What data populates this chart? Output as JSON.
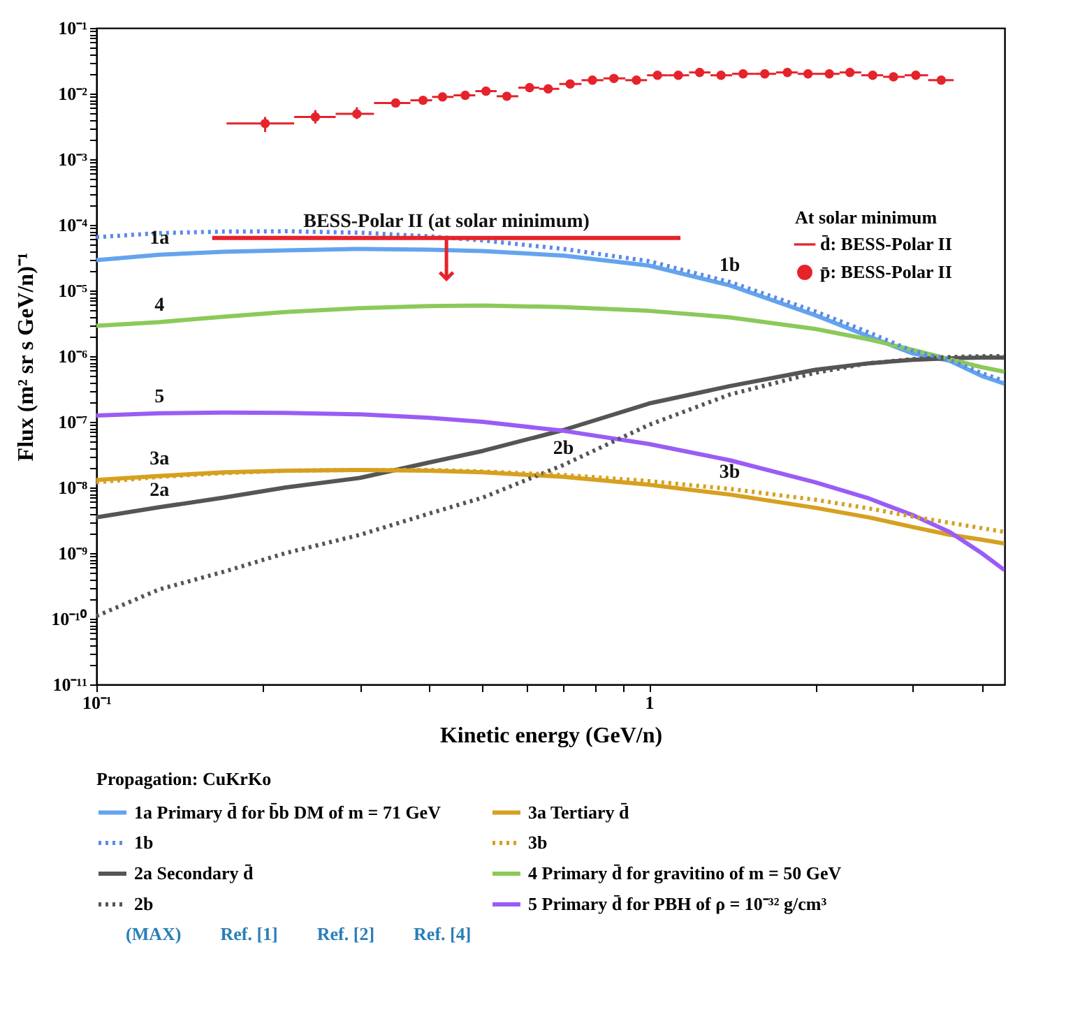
{
  "chart_data": {
    "type": "line",
    "xlabel": "Kinetic energy (GeV/n)",
    "ylabel": "Flux (m² sr s GeV/n)⁻¹",
    "legend_title": "Propagation: CuKrKo",
    "legend": "bottom",
    "log": "xy",
    "x": [
      0.1,
      0.13,
      0.17,
      0.22,
      0.3,
      0.4,
      0.5,
      0.7,
      1.0,
      1.4,
      2.0,
      2.5,
      3.0,
      3.5,
      4.0,
      4.4
    ],
    "series": [
      {
        "name": "1a Primary d̄ for b̄b DM of m = 71 GeV",
        "color": "#64a4ee",
        "line_style": "solid",
        "values": [
          2.9e-05,
          3.5e-05,
          3.9e-05,
          4.1e-05,
          4.3e-05,
          4.2e-05,
          4e-05,
          3.4e-05,
          2.4e-05,
          1.2e-05,
          4.2e-06,
          2e-06,
          1.1e-06,
          8.5e-07,
          5e-07,
          3.8e-07
        ]
      },
      {
        "name": "1b",
        "color": "#5b8be8",
        "line_style": "dotted",
        "values": [
          6.5e-05,
          7.5e-05,
          7.9e-05,
          8e-05,
          7.6e-05,
          6.7e-05,
          5.8e-05,
          4.3e-05,
          2.8e-05,
          1.35e-05,
          4.8e-06,
          2.3e-06,
          1.2e-06,
          8.8e-07,
          5.5e-07,
          4.2e-07
        ]
      },
      {
        "name": "2a Secondary d̄",
        "color": "#555555",
        "line_style": "solid",
        "values": [
          3.5e-09,
          5e-09,
          7e-09,
          1e-08,
          1.4e-08,
          2.4e-08,
          3.6e-08,
          7.5e-08,
          1.9e-07,
          3.5e-07,
          6.2e-07,
          7.8e-07,
          8.8e-07,
          9.3e-07,
          9.5e-07,
          9.5e-07
        ]
      },
      {
        "name": "2b",
        "color": "#555555",
        "line_style": "dotted",
        "values": [
          1.1e-10,
          2.8e-10,
          5.2e-10,
          1e-09,
          1.9e-09,
          4e-09,
          7e-09,
          2.2e-08,
          9e-08,
          2.6e-07,
          5.6e-07,
          7.8e-07,
          9e-07,
          9.7e-07,
          1e-06,
          1e-06
        ]
      },
      {
        "name": "3a Tertiary d̄",
        "color": "#d6a020",
        "line_style": "solid",
        "values": [
          1.3e-08,
          1.5e-08,
          1.7e-08,
          1.8e-08,
          1.85e-08,
          1.8e-08,
          1.7e-08,
          1.45e-08,
          1.1e-08,
          7.8e-09,
          4.9e-09,
          3.5e-09,
          2.5e-09,
          1.9e-09,
          1.6e-09,
          1.4e-09
        ]
      },
      {
        "name": "3b",
        "color": "#d6a020",
        "line_style": "dotted",
        "values": [
          1.2e-08,
          1.45e-08,
          1.65e-08,
          1.8e-08,
          1.85e-08,
          1.85e-08,
          1.75e-08,
          1.55e-08,
          1.25e-08,
          9.5e-09,
          6.5e-09,
          4.8e-09,
          3.6e-09,
          2.9e-09,
          2.4e-09,
          2.1e-09
        ]
      },
      {
        "name": "4 Primary d̄ for gravitino of m = 50 GeV",
        "color": "#8cc95a",
        "line_style": "solid",
        "values": [
          2.9e-06,
          3.3e-06,
          4e-06,
          4.7e-06,
          5.4e-06,
          5.8e-06,
          5.9e-06,
          5.6e-06,
          4.9e-06,
          3.9e-06,
          2.6e-06,
          1.8e-06,
          1.25e-06,
          9e-07,
          6.8e-07,
          5.8e-07
        ]
      },
      {
        "name": "5 Primary d̄ for PBH of ρ = 10⁻³² g/cm³",
        "color": "#9a5cf5",
        "line_style": "solid",
        "values": [
          1.25e-07,
          1.35e-07,
          1.38e-07,
          1.37e-07,
          1.3e-07,
          1.15e-07,
          1e-07,
          7.3e-08,
          4.6e-08,
          2.6e-08,
          1.2e-08,
          6.8e-09,
          3.8e-09,
          2.1e-09,
          1e-09,
          5.5e-10
        ]
      },
      {
        "name": "d̄: BESS-Polar II",
        "type": "line",
        "color": "#e5232b",
        "x": [
          0.162,
          0.43,
          1.14
        ],
        "values": [
          6.3e-05,
          6.3e-05,
          6.3e-05
        ],
        "errors": [
          null,
          [
            1.5e-05,
            6.3e-05
          ],
          null
        ]
      },
      {
        "name": "p̄: BESS-Polar II",
        "type": "scatter",
        "marker": "circle",
        "color": "#e5232b",
        "x": [
          0.202,
          0.249,
          0.296,
          0.348,
          0.39,
          0.423,
          0.465,
          0.507,
          0.553,
          0.608,
          0.657,
          0.72,
          0.79,
          0.864,
          0.949,
          1.036,
          1.13,
          1.235,
          1.35,
          1.48,
          1.62,
          1.78,
          1.94,
          2.12,
          2.31,
          2.54,
          2.77,
          3.04,
          3.38
        ],
        "values": [
          0.0035,
          0.0044,
          0.0049,
          0.0072,
          0.0079,
          0.0089,
          0.0094,
          0.0109,
          0.0091,
          0.0123,
          0.0118,
          0.014,
          0.016,
          0.017,
          0.016,
          0.019,
          0.019,
          0.021,
          0.019,
          0.02,
          0.02,
          0.021,
          0.02,
          0.02,
          0.021,
          0.019,
          0.018,
          0.019,
          0.016
        ],
        "errors": [
          [
            0.0026,
            0.0044
          ],
          [
            0.0035,
            0.0056
          ],
          [
            0.0041,
            0.0062
          ],
          [
            0.0066,
            0.0083
          ],
          [
            0.007,
            0.009
          ],
          [
            0.008,
            0.01
          ],
          [
            0.0086,
            0.0104
          ],
          [
            0.01,
            0.012
          ],
          [
            0.0083,
            0.01
          ],
          [
            0.0115,
            0.0132
          ],
          [
            0.011,
            0.0127
          ],
          null,
          null,
          null,
          null,
          null,
          null,
          null,
          null,
          null,
          null,
          null,
          null,
          null,
          null,
          null,
          null,
          null,
          null
        ],
        "xerrors": [
          [
            0.172,
            0.228
          ],
          [
            0.228,
            0.271
          ],
          [
            0.271,
            0.318
          ],
          [
            0.318,
            0.37
          ],
          [
            0.37,
            0.405
          ],
          [
            0.405,
            0.443
          ],
          [
            0.443,
            0.485
          ],
          [
            0.485,
            0.53
          ],
          [
            0.53,
            0.58
          ],
          [
            0.58,
            0.633
          ],
          [
            0.633,
            0.688
          ],
          [
            0.688,
            0.755
          ],
          [
            0.755,
            0.827
          ],
          [
            0.827,
            0.906
          ],
          [
            0.906,
            0.992
          ],
          [
            0.992,
            1.083
          ],
          [
            1.083,
            1.182
          ],
          [
            1.182,
            1.292
          ],
          [
            1.292,
            1.414
          ],
          [
            1.414,
            1.549
          ],
          [
            1.549,
            1.698
          ],
          [
            1.698,
            1.858
          ],
          [
            1.858,
            2.028
          ],
          [
            2.028,
            2.213
          ],
          [
            2.213,
            2.422
          ],
          [
            2.422,
            2.653
          ],
          [
            2.653,
            2.902
          ],
          [
            2.902,
            3.2
          ],
          [
            3.2,
            3.56
          ]
        ]
      }
    ],
    "annotations": [
      "At solar minimum",
      {
        "text": "BESS-Polar II (at solar minimum)",
        "x": 0.43,
        "y": 6.3e-05
      },
      {
        "text": "1a",
        "x": 0.13,
        "y": 3.5e-05
      },
      {
        "text": "4",
        "x": 0.13,
        "y": 3.3e-06
      },
      {
        "text": "5",
        "x": 0.13,
        "y": 1.35e-07
      },
      {
        "text": "3a",
        "x": 0.13,
        "y": 1.5e-08
      },
      {
        "text": "2a",
        "x": 0.13,
        "y": 5e-09
      },
      {
        "text": "1b",
        "x": 1.4,
        "y": 1.35e-05
      },
      {
        "text": "2b",
        "x": 0.7,
        "y": 2.2e-08
      },
      {
        "text": "3b",
        "x": 1.4,
        "y": 9.5e-09
      },
      "(MAX)",
      "Ref. [1]",
      "Ref. [2]",
      "Ref. [4]"
    ],
    "xlim": [
      0.1,
      4.4
    ],
    "ylim": [
      1e-11,
      0.1
    ],
    "xticks": [
      {
        "value": 0.1,
        "label": "10⁻¹"
      },
      {
        "value": 0.2,
        "label": null
      },
      {
        "value": 0.3,
        "label": null
      },
      {
        "value": 0.4,
        "label": null
      },
      {
        "value": 0.5,
        "label": null
      },
      {
        "value": 0.6,
        "label": null
      },
      {
        "value": 0.7,
        "label": null
      },
      {
        "value": 0.8,
        "label": null
      },
      {
        "value": 0.9,
        "label": null
      },
      1,
      {
        "value": 2,
        "label": null
      },
      {
        "value": 3,
        "label": null
      },
      {
        "value": 4,
        "label": null
      }
    ],
    "yticks": [
      {
        "value": 1e-11,
        "label": "10⁻¹¹"
      },
      {
        "value": 2e-11,
        "label": null
      },
      {
        "value": 3e-11,
        "label": null
      },
      {
        "value": 4e-11,
        "label": null
      },
      {
        "value": 5e-11,
        "label": null
      },
      {
        "value": 6e-11,
        "label": null
      },
      {
        "value": 7e-11,
        "label": null
      },
      {
        "value": 8e-11,
        "label": null
      },
      {
        "value": 9e-11,
        "label": null
      },
      {
        "value": 1e-10,
        "label": "10⁻¹⁰"
      },
      {
        "value": 2e-10,
        "label": null
      },
      {
        "value": 3e-10,
        "label": null
      },
      {
        "value": 4e-10,
        "label": null
      },
      {
        "value": 5e-10,
        "label": null
      },
      {
        "value": 6e-10,
        "label": null
      },
      {
        "value": 7e-10,
        "label": null
      },
      {
        "value": 8e-10,
        "label": null
      },
      {
        "value": 9e-10,
        "label": null
      },
      {
        "value": 1e-09,
        "label": "10⁻⁹"
      },
      {
        "value": 2e-09,
        "label": null
      },
      {
        "value": 3e-09,
        "label": null
      },
      {
        "value": 4e-09,
        "label": null
      },
      {
        "value": 5e-09,
        "label": null
      },
      {
        "value": 6e-09,
        "label": null
      },
      {
        "value": 7e-09,
        "label": null
      },
      {
        "value": 8e-09,
        "label": null
      },
      {
        "value": 9e-09,
        "label": null
      },
      {
        "value": 1e-08,
        "label": "10⁻⁸"
      },
      {
        "value": 2e-08,
        "label": null
      },
      {
        "value": 3e-08,
        "label": null
      },
      {
        "value": 4e-08,
        "label": null
      },
      {
        "value": 5e-08,
        "label": null
      },
      {
        "value": 6e-08,
        "label": null
      },
      {
        "value": 7e-08,
        "label": null
      },
      {
        "value": 8e-08,
        "label": null
      },
      {
        "value": 9e-08,
        "label": null
      },
      {
        "value": 1e-07,
        "label": "10⁻⁷"
      },
      {
        "value": 2e-07,
        "label": null
      },
      {
        "value": 3e-07,
        "label": null
      },
      {
        "value": 4e-07,
        "label": null
      },
      {
        "value": 5e-07,
        "label": null
      },
      {
        "value": 6e-07,
        "label": null
      },
      {
        "value": 7e-07,
        "label": null
      },
      {
        "value": 8e-07,
        "label": null
      },
      {
        "value": 9e-07,
        "label": null
      },
      {
        "value": 1e-06,
        "label": "10⁻⁶"
      },
      {
        "value": 2e-06,
        "label": null
      },
      {
        "value": 3e-06,
        "label": null
      },
      {
        "value": 4e-06,
        "label": null
      },
      {
        "value": 5e-06,
        "label": null
      },
      {
        "value": 6e-06,
        "label": null
      },
      {
        "value": 7e-06,
        "label": null
      },
      {
        "value": 8e-06,
        "label": null
      },
      {
        "value": 9e-06,
        "label": null
      },
      {
        "value": 1e-05,
        "label": "10⁻⁵"
      },
      {
        "value": 2e-05,
        "label": null
      },
      {
        "value": 3e-05,
        "label": null
      },
      {
        "value": 4e-05,
        "label": null
      },
      {
        "value": 5e-05,
        "label": null
      },
      {
        "value": 6e-05,
        "label": null
      },
      {
        "value": 7e-05,
        "label": null
      },
      {
        "value": 8e-05,
        "label": null
      },
      {
        "value": 9e-05,
        "label": null
      },
      {
        "value": 0.0001,
        "label": "10⁻⁴"
      },
      {
        "value": 0.0002,
        "label": null
      },
      {
        "value": 0.0003,
        "label": null
      },
      {
        "value": 0.0004,
        "label": null
      },
      {
        "value": 0.0005,
        "label": null
      },
      {
        "value": 0.0006,
        "label": null
      },
      {
        "value": 0.0007,
        "label": null
      },
      {
        "value": 0.0008,
        "label": null
      },
      {
        "value": 0.0009,
        "label": null
      },
      {
        "value": 0.001,
        "label": "10⁻³"
      },
      {
        "value": 0.002,
        "label": null
      },
      {
        "value": 0.003,
        "label": null
      },
      {
        "value": 0.004,
        "label": null
      },
      {
        "value": 0.005,
        "label": null
      },
      {
        "value": 0.006,
        "label": null
      },
      {
        "value": 0.007,
        "label": null
      },
      {
        "value": 0.008,
        "label": null
      },
      {
        "value": 0.009,
        "label": null
      },
      {
        "value": 0.01,
        "label": "10⁻²"
      },
      {
        "value": 0.02,
        "label": null
      },
      {
        "value": 0.03,
        "label": null
      },
      {
        "value": 0.04,
        "label": null
      },
      {
        "value": 0.05,
        "label": null
      },
      {
        "value": 0.06,
        "label": null
      },
      {
        "value": 0.07,
        "label": null
      },
      {
        "value": 0.08,
        "label": null
      },
      {
        "value": 0.09,
        "label": null
      },
      {
        "value": 0.1,
        "label": "10⁻¹"
      }
    ]
  }
}
